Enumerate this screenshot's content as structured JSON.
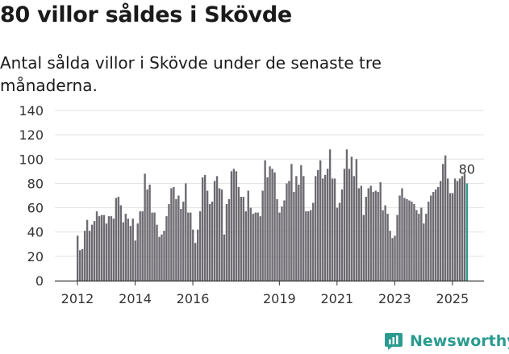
{
  "title": "80 villor såldes i Skövde",
  "subtitle": "Antal sålda villor i Skövde under de senaste tre månaderna.",
  "logo": {
    "text": "Newsworthy",
    "icon": "newsworthy-logo-icon",
    "color": "#2b9b8f"
  },
  "chart_data": {
    "type": "bar",
    "title": "80 villor såldes i Skövde",
    "subtitle": "Antal sålda villor i Skövde under de senaste tre månaderna.",
    "xlabel": "",
    "ylabel": "",
    "ylim": [
      0,
      140
    ],
    "yticks": [
      0,
      20,
      40,
      60,
      80,
      100,
      120,
      140
    ],
    "grid": true,
    "bar_color": "#6d6a71",
    "highlight_color": "#2a9d8f",
    "start": "2012-01",
    "x_ticks": [
      {
        "label": "2012",
        "month_index": 0
      },
      {
        "label": "2014",
        "month_index": 24
      },
      {
        "label": "2016",
        "month_index": 48
      },
      {
        "label": "2019",
        "month_index": 84
      },
      {
        "label": "2021",
        "month_index": 108
      },
      {
        "label": "2023",
        "month_index": 132
      },
      {
        "label": "2025",
        "month_index": 156
      }
    ],
    "values": [
      37,
      25,
      26,
      41,
      50,
      41,
      46,
      49,
      57,
      53,
      54,
      54,
      47,
      53,
      53,
      51,
      68,
      69,
      62,
      48,
      55,
      51,
      45,
      51,
      33,
      47,
      57,
      57,
      88,
      75,
      79,
      56,
      56,
      46,
      36,
      38,
      41,
      53,
      63,
      76,
      77,
      67,
      70,
      59,
      65,
      80,
      56,
      56,
      42,
      31,
      42,
      57,
      85,
      87,
      74,
      63,
      65,
      82,
      86,
      76,
      75,
      38,
      63,
      67,
      90,
      92,
      90,
      77,
      69,
      69,
      57,
      74,
      60,
      55,
      56,
      56,
      53,
      74,
      99,
      85,
      94,
      92,
      89,
      67,
      56,
      61,
      66,
      80,
      82,
      96,
      73,
      86,
      79,
      95,
      86,
      57,
      57,
      58,
      64,
      86,
      91,
      99,
      84,
      87,
      92,
      108,
      84,
      84,
      60,
      64,
      75,
      92,
      108,
      92,
      102,
      86,
      100,
      76,
      78,
      54,
      69,
      76,
      78,
      73,
      74,
      73,
      81,
      58,
      62,
      55,
      41,
      35,
      37,
      54,
      70,
      76,
      68,
      67,
      66,
      65,
      63,
      58,
      55,
      60,
      47,
      55,
      65,
      70,
      73,
      75,
      77,
      82,
      96,
      103,
      84,
      72,
      72,
      84,
      82,
      84,
      86,
      88,
      80
    ],
    "annotation": {
      "text": "80",
      "month_index": 162
    }
  }
}
